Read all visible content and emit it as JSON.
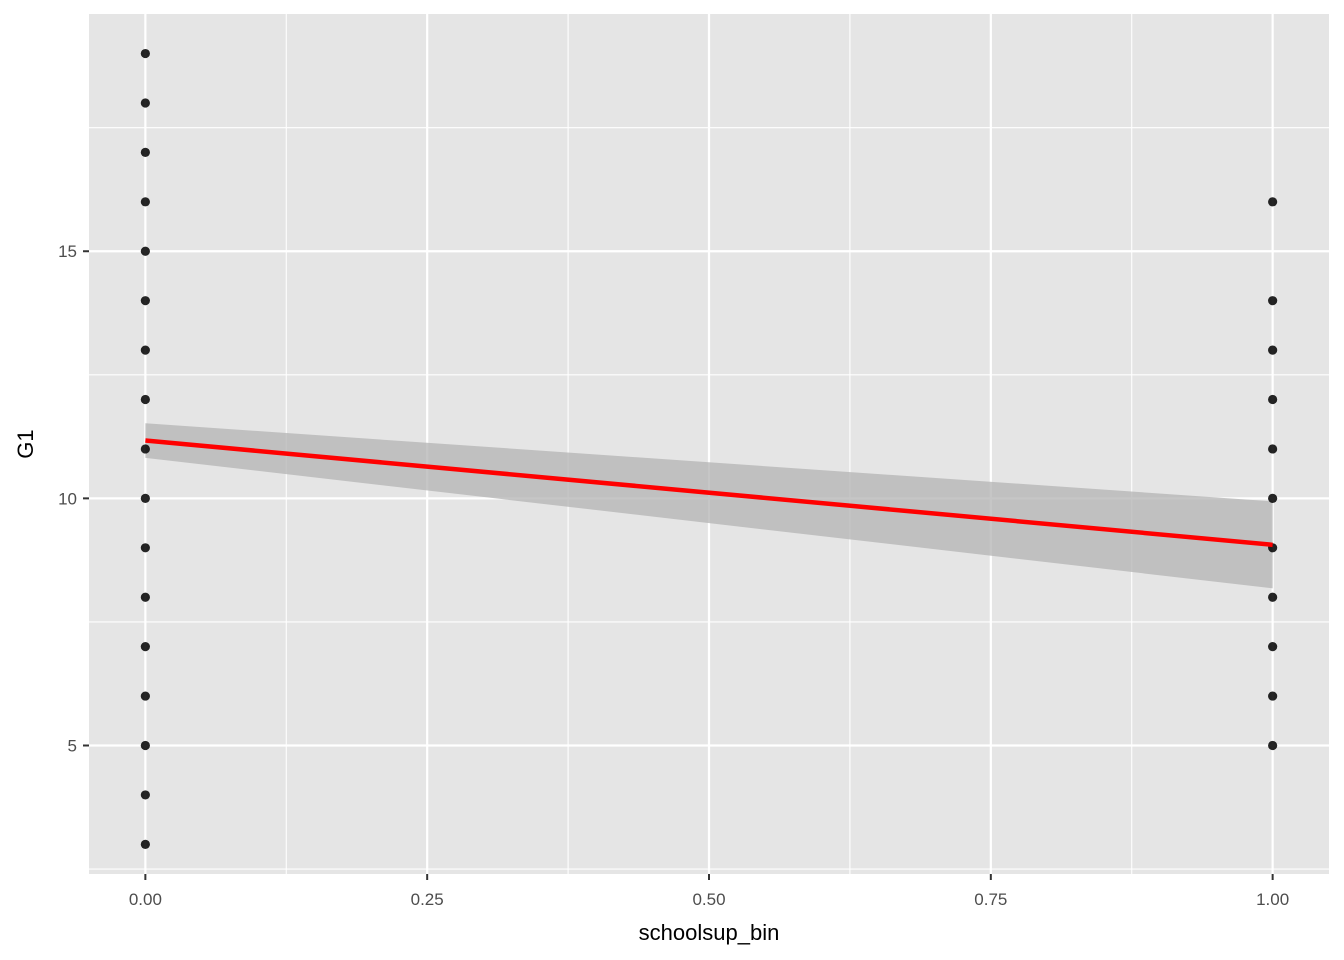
{
  "chart_data": {
    "type": "scatter",
    "title": "",
    "xlabel": "schoolsup_bin",
    "ylabel": "G1",
    "xlim": [
      -0.05,
      1.05
    ],
    "ylim": [
      2.4,
      19.8
    ],
    "x_ticks": [
      0,
      0.25,
      0.5,
      0.75,
      1
    ],
    "x_tick_labels": [
      "0.00",
      "0.25",
      "0.50",
      "0.75",
      "1.00"
    ],
    "y_ticks": [
      5,
      10,
      15
    ],
    "y_tick_labels": [
      "5",
      "10",
      "15"
    ],
    "grid": true,
    "legend": "none",
    "colors": {
      "panel": "#e5e5e5",
      "grid": "#ffffff",
      "points": "#000000",
      "fit_line": "#ff0000",
      "ribbon": "#b3b3b3"
    },
    "points": {
      "x0_values": [
        3,
        4,
        5,
        6,
        7,
        8,
        9,
        10,
        11,
        12,
        13,
        14,
        15,
        16,
        17,
        18,
        19
      ],
      "x1_values": [
        5,
        6,
        7,
        8,
        9,
        10,
        11,
        12,
        13,
        14,
        16
      ]
    },
    "fit": {
      "method": "lm",
      "x": [
        0,
        1
      ],
      "y": [
        11.17,
        9.06
      ],
      "ci_lower": [
        10.82,
        8.18
      ],
      "ci_upper": [
        11.52,
        9.94
      ]
    }
  }
}
